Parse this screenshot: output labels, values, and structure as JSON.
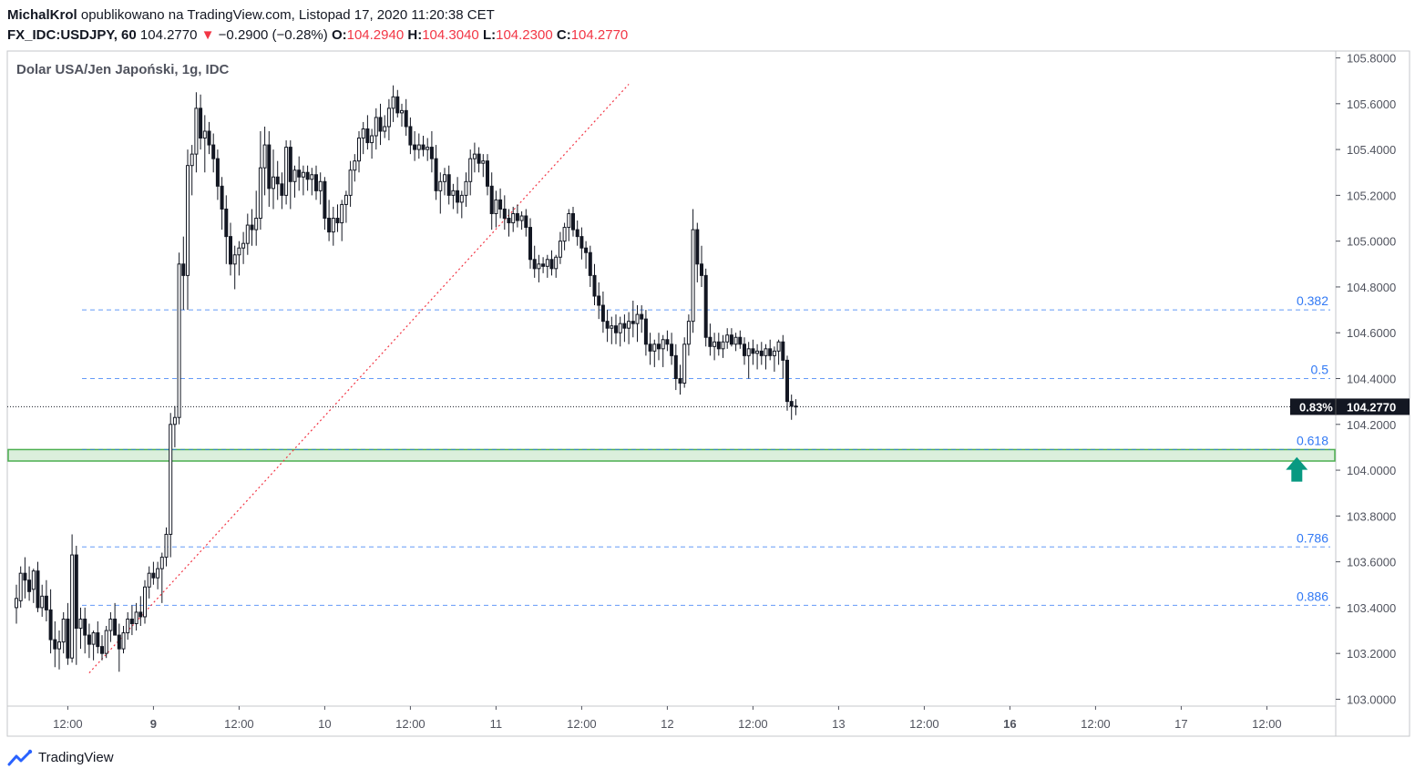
{
  "header": {
    "author": "MichalKrol",
    "published": "opublikowano na TradingView.com, Listopad 17, 2020 11:20:38 CET",
    "symbol": "FX_IDC:USDJPY, 60",
    "last": "104.2770",
    "change": "−0.2900 (−0.28%)",
    "o_label": "O:",
    "o_value": "104.2940",
    "h_label": "H:",
    "h_value": "104.3040",
    "l_label": "L:",
    "l_value": "104.2300",
    "c_label": "C:",
    "c_value": "104.2770"
  },
  "footer": {
    "brand": "TradingView"
  },
  "chart_data": {
    "type": "candlestick",
    "title": "Dolar USA/Jen Japoński, 1g, IDC",
    "ylim": [
      102.97,
      105.83
    ],
    "y_ticks": [
      "105.8000",
      "105.6000",
      "105.4000",
      "105.2000",
      "105.0000",
      "104.8000",
      "104.6000",
      "104.4000",
      "104.2000",
      "104.0000",
      "103.8000",
      "103.6000",
      "103.4000",
      "103.2000",
      "103.0000"
    ],
    "x_ticks": [
      {
        "i": 12,
        "label": "12:00",
        "bold": false
      },
      {
        "i": 32,
        "label": "9",
        "bold": true
      },
      {
        "i": 52,
        "label": "12:00",
        "bold": false
      },
      {
        "i": 72,
        "label": "10",
        "bold": false
      },
      {
        "i": 92,
        "label": "12:00",
        "bold": false
      },
      {
        "i": 112,
        "label": "11",
        "bold": false
      },
      {
        "i": 132,
        "label": "12:00",
        "bold": false
      },
      {
        "i": 152,
        "label": "12",
        "bold": false
      },
      {
        "i": 172,
        "label": "12:00",
        "bold": false
      },
      {
        "i": 192,
        "label": "13",
        "bold": false
      },
      {
        "i": 212,
        "label": "12:00",
        "bold": false
      },
      {
        "i": 232,
        "label": "16",
        "bold": true
      },
      {
        "i": 252,
        "label": "12:00",
        "bold": false
      },
      {
        "i": 272,
        "label": "17",
        "bold": false
      },
      {
        "i": 292,
        "label": "12:00",
        "bold": false
      }
    ],
    "fib_levels": [
      {
        "label": "0.382",
        "value": 104.7
      },
      {
        "label": "0.5",
        "value": 104.4
      },
      {
        "label": "0.618",
        "value": 104.09
      },
      {
        "label": "0.786",
        "value": 103.665
      },
      {
        "label": "0.886",
        "value": 103.41
      }
    ],
    "support_zone": [
      104.04,
      104.09
    ],
    "current_price": {
      "value": 104.277,
      "label": "104.2770",
      "pct": "0.83%"
    },
    "trend_line": {
      "from": {
        "i": 17,
        "v": 103.115
      },
      "to": {
        "i": 143,
        "v": 105.685
      }
    },
    "arrow_up": {
      "i": 299,
      "v": 103.95
    },
    "ohlc": [
      [
        103.4,
        103.5,
        103.33,
        103.44
      ],
      [
        103.43,
        103.58,
        103.4,
        103.55
      ],
      [
        103.55,
        103.62,
        103.44,
        103.52
      ],
      [
        103.52,
        103.58,
        103.43,
        103.47
      ],
      [
        103.48,
        103.57,
        103.42,
        103.56
      ],
      [
        103.56,
        103.6,
        103.38,
        103.4
      ],
      [
        103.4,
        103.5,
        103.36,
        103.45
      ],
      [
        103.45,
        103.52,
        103.34,
        103.39
      ],
      [
        103.39,
        103.48,
        103.2,
        103.26
      ],
      [
        103.26,
        103.34,
        103.14,
        103.22
      ],
      [
        103.22,
        103.3,
        103.13,
        103.25
      ],
      [
        103.25,
        103.38,
        103.2,
        103.35
      ],
      [
        103.35,
        103.42,
        103.15,
        103.18
      ],
      [
        103.18,
        103.72,
        103.16,
        103.63
      ],
      [
        103.63,
        103.67,
        103.15,
        103.31
      ],
      [
        103.31,
        103.4,
        103.22,
        103.35
      ],
      [
        103.35,
        103.4,
        103.2,
        103.28
      ],
      [
        103.28,
        103.33,
        103.18,
        103.24
      ],
      [
        103.24,
        103.3,
        103.17,
        103.29
      ],
      [
        103.29,
        103.34,
        103.2,
        103.23
      ],
      [
        103.23,
        103.28,
        103.17,
        103.2
      ],
      [
        103.2,
        103.32,
        103.18,
        103.3
      ],
      [
        103.3,
        103.38,
        103.25,
        103.35
      ],
      [
        103.35,
        103.42,
        103.3,
        103.28
      ],
      [
        103.28,
        103.33,
        103.12,
        103.22
      ],
      [
        103.22,
        103.32,
        103.2,
        103.29
      ],
      [
        103.29,
        103.38,
        103.26,
        103.35
      ],
      [
        103.35,
        103.41,
        103.28,
        103.33
      ],
      [
        103.33,
        103.42,
        103.3,
        103.38
      ],
      [
        103.38,
        103.45,
        103.32,
        103.36
      ],
      [
        103.36,
        103.52,
        103.33,
        103.49
      ],
      [
        103.49,
        103.58,
        103.44,
        103.55
      ],
      [
        103.55,
        103.6,
        103.5,
        103.53
      ],
      [
        103.53,
        103.6,
        103.48,
        103.57
      ],
      [
        103.57,
        103.64,
        103.42,
        103.62
      ],
      [
        103.62,
        103.75,
        103.58,
        103.72
      ],
      [
        103.72,
        104.25,
        103.62,
        104.2
      ],
      [
        104.2,
        104.28,
        104.1,
        104.23
      ],
      [
        104.23,
        104.95,
        104.2,
        104.9
      ],
      [
        104.9,
        105.02,
        104.7,
        104.85
      ],
      [
        104.85,
        105.4,
        104.7,
        105.33
      ],
      [
        105.33,
        105.42,
        105.2,
        105.38
      ],
      [
        105.38,
        105.65,
        105.3,
        105.58
      ],
      [
        105.58,
        105.64,
        105.4,
        105.45
      ],
      [
        105.45,
        105.55,
        105.3,
        105.48
      ],
      [
        105.48,
        105.52,
        105.38,
        105.42
      ],
      [
        105.42,
        105.47,
        105.3,
        105.36
      ],
      [
        105.36,
        105.4,
        105.18,
        105.24
      ],
      [
        105.24,
        105.28,
        105.05,
        105.14
      ],
      [
        105.14,
        105.2,
        104.9,
        105.02
      ],
      [
        105.02,
        105.08,
        104.85,
        104.9
      ],
      [
        104.9,
        104.98,
        104.79,
        104.94
      ],
      [
        104.94,
        105.0,
        104.85,
        104.97
      ],
      [
        104.97,
        105.04,
        104.9,
        104.99
      ],
      [
        104.99,
        105.12,
        104.94,
        105.07
      ],
      [
        105.07,
        105.14,
        104.98,
        105.05
      ],
      [
        105.05,
        105.22,
        104.98,
        105.1
      ],
      [
        105.1,
        105.48,
        105.05,
        105.32
      ],
      [
        105.32,
        105.5,
        105.2,
        105.42
      ],
      [
        105.42,
        105.48,
        105.15,
        105.23
      ],
      [
        105.23,
        105.4,
        105.14,
        105.28
      ],
      [
        105.28,
        105.35,
        105.18,
        105.25
      ],
      [
        105.25,
        105.3,
        105.14,
        105.2
      ],
      [
        105.2,
        105.44,
        105.16,
        105.41
      ],
      [
        105.41,
        105.44,
        105.14,
        105.26
      ],
      [
        105.26,
        105.33,
        105.19,
        105.31
      ],
      [
        105.31,
        105.37,
        105.22,
        105.28
      ],
      [
        105.28,
        105.33,
        105.2,
        105.3
      ],
      [
        105.3,
        105.33,
        105.22,
        105.27
      ],
      [
        105.27,
        105.32,
        105.2,
        105.29
      ],
      [
        105.29,
        105.33,
        105.18,
        105.22
      ],
      [
        105.22,
        105.3,
        105.16,
        105.26
      ],
      [
        105.26,
        105.28,
        105.05,
        105.1
      ],
      [
        105.1,
        105.18,
        105.0,
        105.04
      ],
      [
        105.04,
        105.15,
        104.98,
        105.1
      ],
      [
        105.1,
        105.16,
        105.04,
        105.08
      ],
      [
        105.08,
        105.18,
        105.0,
        105.16
      ],
      [
        105.16,
        105.22,
        105.08,
        105.2
      ],
      [
        105.2,
        105.35,
        105.15,
        105.31
      ],
      [
        105.31,
        105.38,
        105.26,
        105.35
      ],
      [
        105.35,
        105.48,
        105.3,
        105.45
      ],
      [
        105.45,
        105.52,
        105.38,
        105.49
      ],
      [
        105.49,
        105.55,
        105.4,
        105.43
      ],
      [
        105.43,
        105.49,
        105.36,
        105.46
      ],
      [
        105.46,
        105.58,
        105.4,
        105.54
      ],
      [
        105.54,
        105.6,
        105.42,
        105.48
      ],
      [
        105.48,
        105.55,
        105.45,
        105.5
      ],
      [
        105.5,
        105.62,
        105.44,
        105.58
      ],
      [
        105.58,
        105.68,
        105.52,
        105.63
      ],
      [
        105.63,
        105.66,
        105.54,
        105.56
      ],
      [
        105.56,
        105.6,
        105.5,
        105.57
      ],
      [
        105.57,
        105.62,
        105.46,
        105.5
      ],
      [
        105.5,
        105.54,
        105.38,
        105.42
      ],
      [
        105.42,
        105.48,
        105.35,
        105.4
      ],
      [
        105.4,
        105.47,
        105.36,
        105.42
      ],
      [
        105.42,
        105.46,
        105.37,
        105.4
      ],
      [
        105.4,
        105.45,
        105.35,
        105.41
      ],
      [
        105.41,
        105.48,
        105.3,
        105.36
      ],
      [
        105.36,
        105.42,
        105.18,
        105.22
      ],
      [
        105.22,
        105.3,
        105.12,
        105.26
      ],
      [
        105.26,
        105.32,
        105.2,
        105.29
      ],
      [
        105.29,
        105.33,
        105.16,
        105.2
      ],
      [
        105.2,
        105.25,
        105.14,
        105.22
      ],
      [
        105.22,
        105.28,
        105.12,
        105.17
      ],
      [
        105.17,
        105.22,
        105.1,
        105.2
      ],
      [
        105.2,
        105.3,
        105.15,
        105.26
      ],
      [
        105.26,
        105.4,
        105.2,
        105.36
      ],
      [
        105.36,
        105.43,
        105.3,
        105.38
      ],
      [
        105.38,
        105.41,
        105.3,
        105.34
      ],
      [
        105.34,
        105.38,
        105.28,
        105.35
      ],
      [
        105.35,
        105.38,
        105.2,
        105.24
      ],
      [
        105.24,
        105.3,
        105.05,
        105.12
      ],
      [
        105.12,
        105.22,
        105.06,
        105.18
      ],
      [
        105.18,
        105.23,
        105.1,
        105.14
      ],
      [
        105.14,
        105.2,
        105.05,
        105.1
      ],
      [
        105.1,
        105.14,
        105.02,
        105.08
      ],
      [
        105.08,
        105.15,
        105.04,
        105.12
      ],
      [
        105.12,
        105.16,
        105.06,
        105.09
      ],
      [
        105.09,
        105.13,
        105.05,
        105.11
      ],
      [
        105.11,
        105.14,
        105.02,
        105.06
      ],
      [
        105.06,
        105.1,
        104.88,
        104.92
      ],
      [
        104.92,
        104.98,
        104.84,
        104.88
      ],
      [
        104.88,
        104.94,
        104.82,
        104.9
      ],
      [
        104.9,
        104.93,
        104.86,
        104.89
      ],
      [
        104.89,
        104.94,
        104.84,
        104.92
      ],
      [
        104.92,
        104.96,
        104.85,
        104.88
      ],
      [
        104.88,
        104.94,
        104.84,
        104.93
      ],
      [
        104.93,
        105.04,
        104.9,
        105.0
      ],
      [
        105.0,
        105.08,
        104.96,
        105.06
      ],
      [
        105.06,
        105.14,
        105.0,
        105.12
      ],
      [
        105.12,
        105.15,
        105.02,
        105.05
      ],
      [
        105.05,
        105.09,
        104.98,
        105.02
      ],
      [
        105.02,
        105.06,
        104.92,
        104.97
      ],
      [
        104.97,
        105.0,
        104.88,
        104.95
      ],
      [
        104.95,
        104.98,
        104.8,
        104.85
      ],
      [
        104.85,
        104.9,
        104.72,
        104.76
      ],
      [
        104.76,
        104.82,
        104.66,
        104.72
      ],
      [
        104.72,
        104.78,
        104.6,
        104.65
      ],
      [
        104.65,
        104.7,
        104.56,
        104.62
      ],
      [
        104.62,
        104.67,
        104.55,
        104.63
      ],
      [
        104.63,
        104.68,
        104.55,
        104.6
      ],
      [
        104.6,
        104.67,
        104.54,
        104.64
      ],
      [
        104.64,
        104.68,
        104.56,
        104.62
      ],
      [
        104.62,
        104.69,
        104.55,
        104.65
      ],
      [
        104.65,
        104.74,
        104.58,
        104.64
      ],
      [
        104.64,
        104.72,
        104.56,
        104.68
      ],
      [
        104.68,
        104.72,
        104.6,
        104.66
      ],
      [
        104.66,
        104.7,
        104.5,
        104.55
      ],
      [
        104.55,
        104.6,
        104.46,
        104.52
      ],
      [
        104.52,
        104.57,
        104.45,
        104.55
      ],
      [
        104.55,
        104.6,
        104.48,
        104.53
      ],
      [
        104.53,
        104.59,
        104.45,
        104.57
      ],
      [
        104.57,
        104.61,
        104.52,
        104.55
      ],
      [
        104.55,
        104.6,
        104.46,
        104.5
      ],
      [
        104.5,
        104.55,
        104.35,
        104.4
      ],
      [
        104.4,
        104.46,
        104.33,
        104.38
      ],
      [
        104.38,
        104.58,
        104.36,
        104.55
      ],
      [
        104.55,
        104.68,
        104.5,
        104.65
      ],
      [
        104.65,
        105.14,
        104.6,
        105.05
      ],
      [
        105.05,
        105.08,
        104.82,
        104.9
      ],
      [
        104.9,
        104.98,
        104.8,
        104.85
      ],
      [
        104.85,
        104.88,
        104.54,
        104.58
      ],
      [
        104.58,
        104.64,
        104.5,
        104.54
      ],
      [
        104.54,
        104.6,
        104.48,
        104.56
      ],
      [
        104.56,
        104.6,
        104.5,
        104.53
      ],
      [
        104.53,
        104.59,
        104.49,
        104.56
      ],
      [
        104.56,
        104.62,
        104.53,
        104.59
      ],
      [
        104.59,
        104.62,
        104.54,
        104.55
      ],
      [
        104.55,
        104.6,
        104.52,
        104.58
      ],
      [
        104.58,
        104.61,
        104.53,
        104.55
      ],
      [
        104.55,
        104.58,
        104.46,
        104.5
      ],
      [
        104.5,
        104.56,
        104.4,
        104.53
      ],
      [
        104.53,
        104.57,
        104.46,
        104.51
      ],
      [
        104.51,
        104.55,
        104.44,
        104.52
      ],
      [
        104.52,
        104.56,
        104.46,
        104.5
      ],
      [
        104.5,
        104.55,
        104.44,
        104.53
      ],
      [
        104.53,
        104.57,
        104.48,
        104.5
      ],
      [
        104.5,
        104.54,
        104.43,
        104.52
      ],
      [
        104.52,
        104.57,
        104.46,
        104.56
      ],
      [
        104.56,
        104.59,
        104.4,
        104.48
      ],
      [
        104.48,
        104.5,
        104.26,
        104.3
      ],
      [
        104.3,
        104.33,
        104.22,
        104.28
      ],
      [
        104.28,
        104.31,
        104.24,
        104.277
      ]
    ]
  }
}
